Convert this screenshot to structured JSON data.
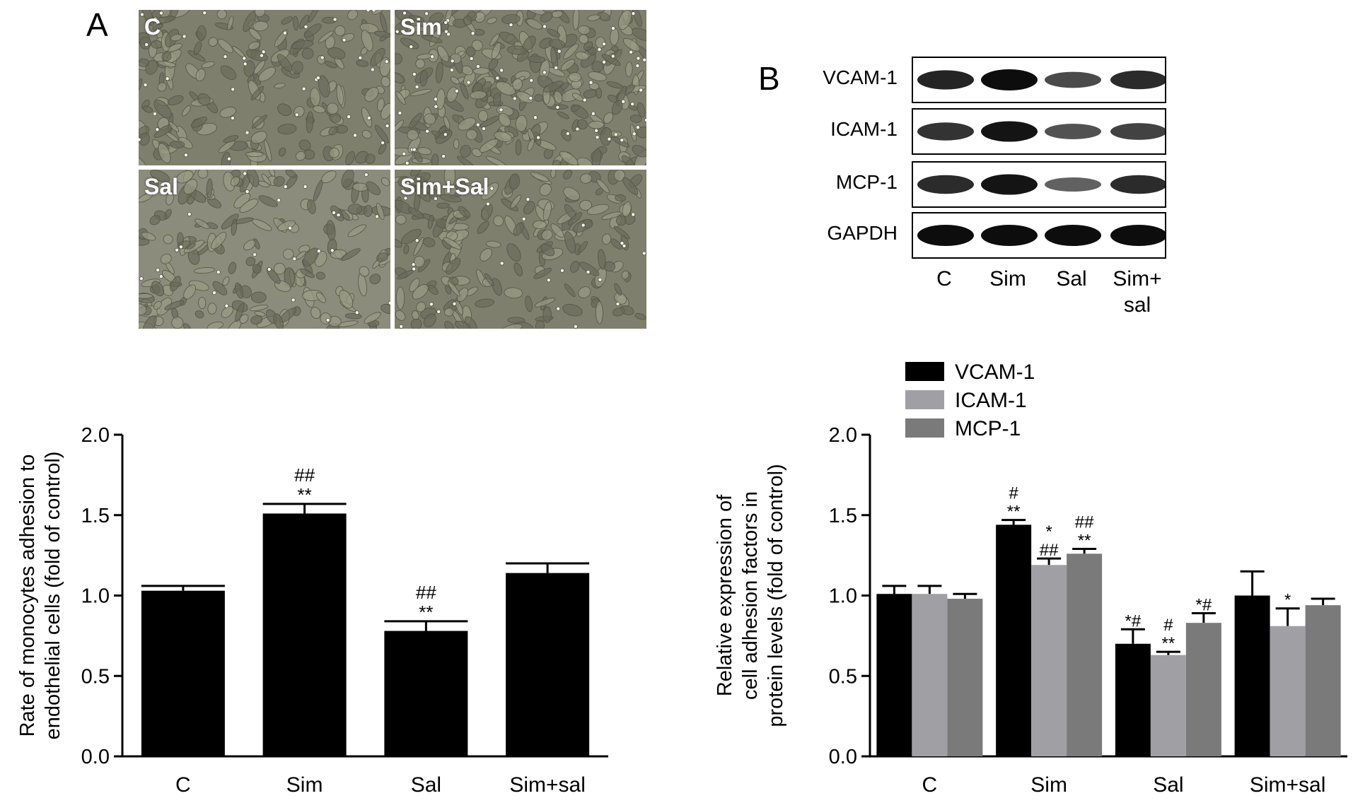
{
  "panel_a": {
    "letter": "A",
    "micrographs": [
      {
        "label": "C"
      },
      {
        "label": "Sim"
      },
      {
        "label": "Sal"
      },
      {
        "label": "Sim+Sal"
      }
    ]
  },
  "panel_b": {
    "letter": "B",
    "blot_rows": [
      {
        "label": "VCAM-1",
        "intensities": [
          0.85,
          1.0,
          0.6,
          0.8
        ]
      },
      {
        "label": "ICAM-1",
        "intensities": [
          0.75,
          0.95,
          0.55,
          0.65
        ]
      },
      {
        "label": "MCP-1",
        "intensities": [
          0.8,
          0.95,
          0.45,
          0.8
        ]
      },
      {
        "label": "GAPDH",
        "intensities": [
          1.0,
          1.0,
          1.0,
          1.0
        ]
      }
    ],
    "lane_labels": [
      "C",
      "Sim",
      "Sal",
      "Sim+\nsal"
    ]
  },
  "chart_data": [
    {
      "type": "bar",
      "categories": [
        "C",
        "Sim",
        "Sal",
        "Sim+sal"
      ],
      "values": [
        1.03,
        1.51,
        0.78,
        1.14
      ],
      "errors": [
        0.03,
        0.06,
        0.06,
        0.06
      ],
      "annotations": [
        {
          "category": "Sim",
          "lines": [
            "##",
            "**"
          ]
        },
        {
          "category": "Sal",
          "lines": [
            "##",
            "**"
          ]
        }
      ],
      "ylabel_lines": [
        "Rate of monocytes adhesion to",
        "endothelial cells (fold of control)"
      ],
      "yticks": [
        "0.0",
        "0.5",
        "1.0",
        "1.5",
        "2.0"
      ],
      "ylim": [
        0,
        2.0
      ],
      "color": "#000000"
    },
    {
      "type": "bar",
      "categories": [
        "C",
        "Sim",
        "Sal",
        "Sim+sal"
      ],
      "series": [
        {
          "name": "VCAM-1",
          "color": "#000000",
          "values": [
            1.01,
            1.44,
            0.7,
            1.0
          ],
          "errors": [
            0.05,
            0.03,
            0.09,
            0.15
          ]
        },
        {
          "name": "ICAM-1",
          "color": "#a0a0a4",
          "values": [
            1.01,
            1.19,
            0.63,
            0.81
          ],
          "errors": [
            0.05,
            0.04,
            0.02,
            0.11
          ]
        },
        {
          "name": "MCP-1",
          "color": "#7a7a7a",
          "values": [
            0.98,
            1.26,
            0.83,
            0.94
          ],
          "errors": [
            0.03,
            0.03,
            0.06,
            0.04
          ]
        }
      ],
      "annotations": [
        {
          "category": "Sim",
          "series": "VCAM-1",
          "lines": [
            "#",
            "**"
          ]
        },
        {
          "category": "Sim",
          "series": "ICAM-1",
          "lines": [
            "*",
            "##"
          ]
        },
        {
          "category": "Sim",
          "series": "MCP-1",
          "lines": [
            "##",
            "**"
          ]
        },
        {
          "category": "Sal",
          "series": "VCAM-1",
          "lines": [
            "*#"
          ]
        },
        {
          "category": "Sal",
          "series": "ICAM-1",
          "lines": [
            "#",
            "**"
          ]
        },
        {
          "category": "Sal",
          "series": "MCP-1",
          "lines": [
            "*#"
          ]
        },
        {
          "category": "Sim+sal",
          "series": "ICAM-1",
          "lines": [
            "*"
          ]
        }
      ],
      "ylabel_lines": [
        "Relative expression of",
        "cell adhesion factors in",
        "protein levels (fold of control)"
      ],
      "yticks": [
        "0.0",
        "0.5",
        "1.0",
        "1.5",
        "2.0"
      ],
      "ylim": [
        0,
        2.0
      ],
      "legend_position": "top-left"
    }
  ]
}
